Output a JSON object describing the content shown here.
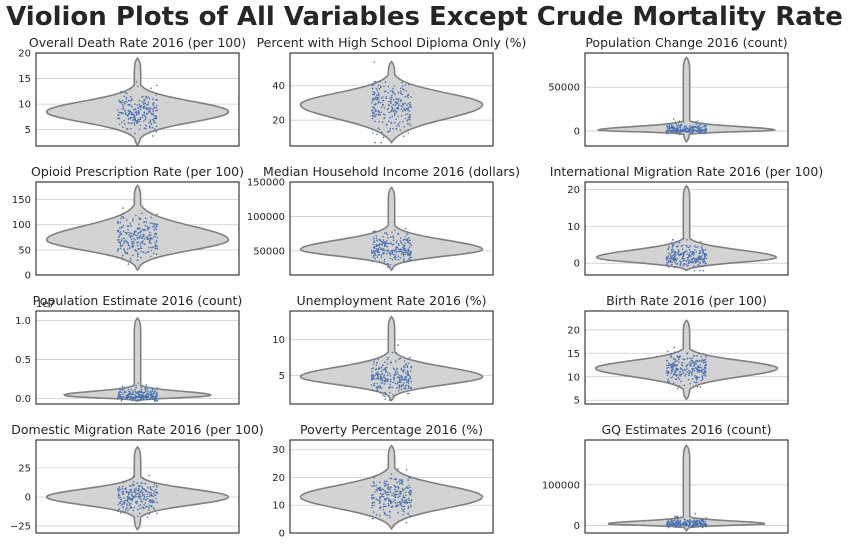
{
  "figure": {
    "title": "Violion Plots of All Variables Except Crude Mortality Rate"
  },
  "style": {
    "violin_fill": "#d3d3d3",
    "violin_edge": "#808080",
    "point_color": "#4c72b0",
    "grid_color": "#cccccc",
    "axes_edge": "#262626"
  },
  "chart_data": [
    {
      "type": "violin",
      "title": "Overall Death Rate 2016 (per 100)",
      "ylim": [
        1.8,
        20
      ],
      "yticks": [
        5,
        10,
        15,
        20
      ],
      "ytick_labels": [
        "5",
        "10",
        "15",
        "20"
      ],
      "data_min": 2,
      "data_max": 19,
      "median": 8.5,
      "q1": 7,
      "q3": 10,
      "grid": true
    },
    {
      "type": "violin",
      "title": "Percent with High School Diploma Only (%)",
      "ylim": [
        5,
        59
      ],
      "yticks": [
        20,
        40
      ],
      "ytick_labels": [
        "20",
        "40"
      ],
      "data_min": 7,
      "data_max": 54,
      "median": 29,
      "q1": 23,
      "q3": 34,
      "grid": true
    },
    {
      "type": "violin",
      "title": "Population Change 2016 (count)",
      "ylim": [
        -17000,
        89000
      ],
      "yticks": [
        0,
        50000
      ],
      "ytick_labels": [
        "0",
        "50000"
      ],
      "data_min": -12000,
      "data_max": 84000,
      "median": 1000,
      "q1": -300,
      "q3": 4000,
      "grid": true
    },
    {
      "type": "violin",
      "title": "Opioid Prescription Rate (per 100)",
      "ylim": [
        0,
        185
      ],
      "yticks": [
        0,
        50,
        100,
        150
      ],
      "ytick_labels": [
        "0",
        "50",
        "100",
        "150"
      ],
      "data_min": 10,
      "data_max": 178,
      "median": 70,
      "q1": 55,
      "q3": 90,
      "grid": true
    },
    {
      "type": "violin",
      "title": "Median Household Income 2016 (dollars)",
      "ylim": [
        15000,
        150000
      ],
      "yticks": [
        50000,
        100000,
        150000
      ],
      "ytick_labels": [
        "50000",
        "100000",
        "150000"
      ],
      "data_min": 22000,
      "data_max": 142000,
      "median": 52000,
      "q1": 45000,
      "q3": 62000,
      "grid": true
    },
    {
      "type": "violin",
      "title": "International Migration Rate 2016 (per 100)",
      "ylim": [
        -3.2,
        22
      ],
      "yticks": [
        0,
        10,
        20
      ],
      "ytick_labels": [
        "0",
        "10",
        "20"
      ],
      "data_min": -2,
      "data_max": 21,
      "median": 1.5,
      "q1": 0.5,
      "q3": 3,
      "grid": true
    },
    {
      "type": "violin",
      "title": "Population Estimate 2016 (count)",
      "scale_label": "1e7",
      "ylim": [
        -0.07,
        1.12
      ],
      "yticks": [
        0.0,
        0.5,
        1.0
      ],
      "ytick_labels": [
        "0.0",
        "0.5",
        "1.0"
      ],
      "data_min": -0.03,
      "data_max": 1.03,
      "median": 0.03,
      "q1": 0.01,
      "q3": 0.07,
      "grid": true
    },
    {
      "type": "violin",
      "title": "Unemployment Rate 2016 (%)",
      "ylim": [
        1,
        14
      ],
      "yticks": [
        5,
        10
      ],
      "ytick_labels": [
        "5",
        "10"
      ],
      "data_min": 1.5,
      "data_max": 13.2,
      "median": 4.8,
      "q1": 4,
      "q3": 5.8,
      "grid": true
    },
    {
      "type": "violin",
      "title": "Birth Rate 2016 (per 100)",
      "ylim": [
        4.2,
        24
      ],
      "yticks": [
        5,
        10,
        15,
        20
      ],
      "ytick_labels": [
        "5",
        "10",
        "15",
        "20"
      ],
      "data_min": 5.2,
      "data_max": 22,
      "median": 11.8,
      "q1": 10.5,
      "q3": 13,
      "grid": true
    },
    {
      "type": "violin",
      "title": "Domestic Migration Rate 2016 (per 100)",
      "ylim": [
        -31,
        49
      ],
      "yticks": [
        -25,
        0,
        25
      ],
      "ytick_labels": [
        "−25",
        "0",
        "25"
      ],
      "data_min": -28,
      "data_max": 43,
      "median": 0,
      "q1": -5,
      "q3": 5,
      "grid": true
    },
    {
      "type": "violin",
      "title": "Poverty Percentage 2016 (%)",
      "ylim": [
        0,
        33.5
      ],
      "yticks": [
        0,
        10,
        20,
        30
      ],
      "ytick_labels": [
        "0",
        "10",
        "20",
        "30"
      ],
      "data_min": 1.5,
      "data_max": 31.5,
      "median": 13,
      "q1": 10,
      "q3": 16,
      "grid": true
    },
    {
      "type": "violin",
      "title": "GQ Estimates 2016 (count)",
      "ylim": [
        -18000,
        210000
      ],
      "yticks": [
        0,
        100000
      ],
      "ytick_labels": [
        "0",
        "100000"
      ],
      "data_min": -12000,
      "data_max": 197000,
      "median": 4000,
      "q1": 1500,
      "q3": 9000,
      "grid": true
    }
  ]
}
